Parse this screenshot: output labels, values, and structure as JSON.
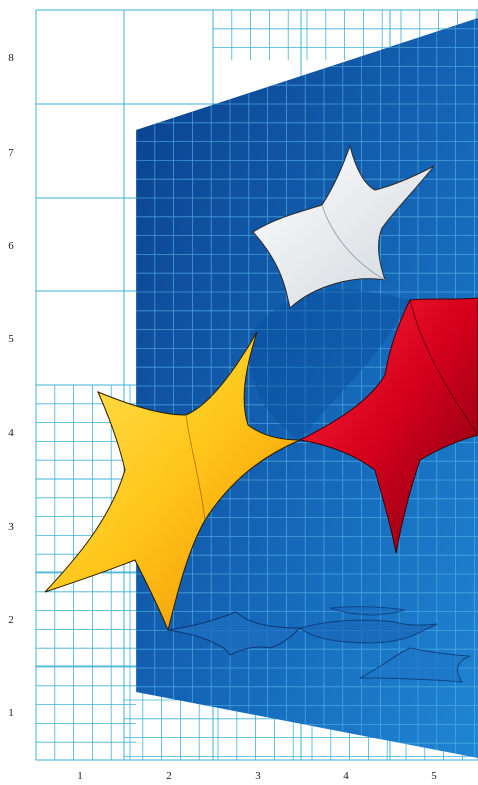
{
  "figure": {
    "x_ticks": [
      "1",
      "2",
      "3",
      "4",
      "5"
    ],
    "y_ticks": [
      "8",
      "7",
      "6",
      "5",
      "4",
      "3",
      "2",
      "1"
    ],
    "colors": {
      "grid": "#3fb2d6",
      "panel_dark": "#0a3f8c",
      "panel_light": "#1a78c8",
      "star_white": "#f4f4f4",
      "star_yellow": "#ffd21a",
      "star_red": "#d9001f"
    },
    "shapes": [
      "blue-perspective-panel",
      "white-star",
      "red-star",
      "yellow-star",
      "star-reflections"
    ]
  }
}
